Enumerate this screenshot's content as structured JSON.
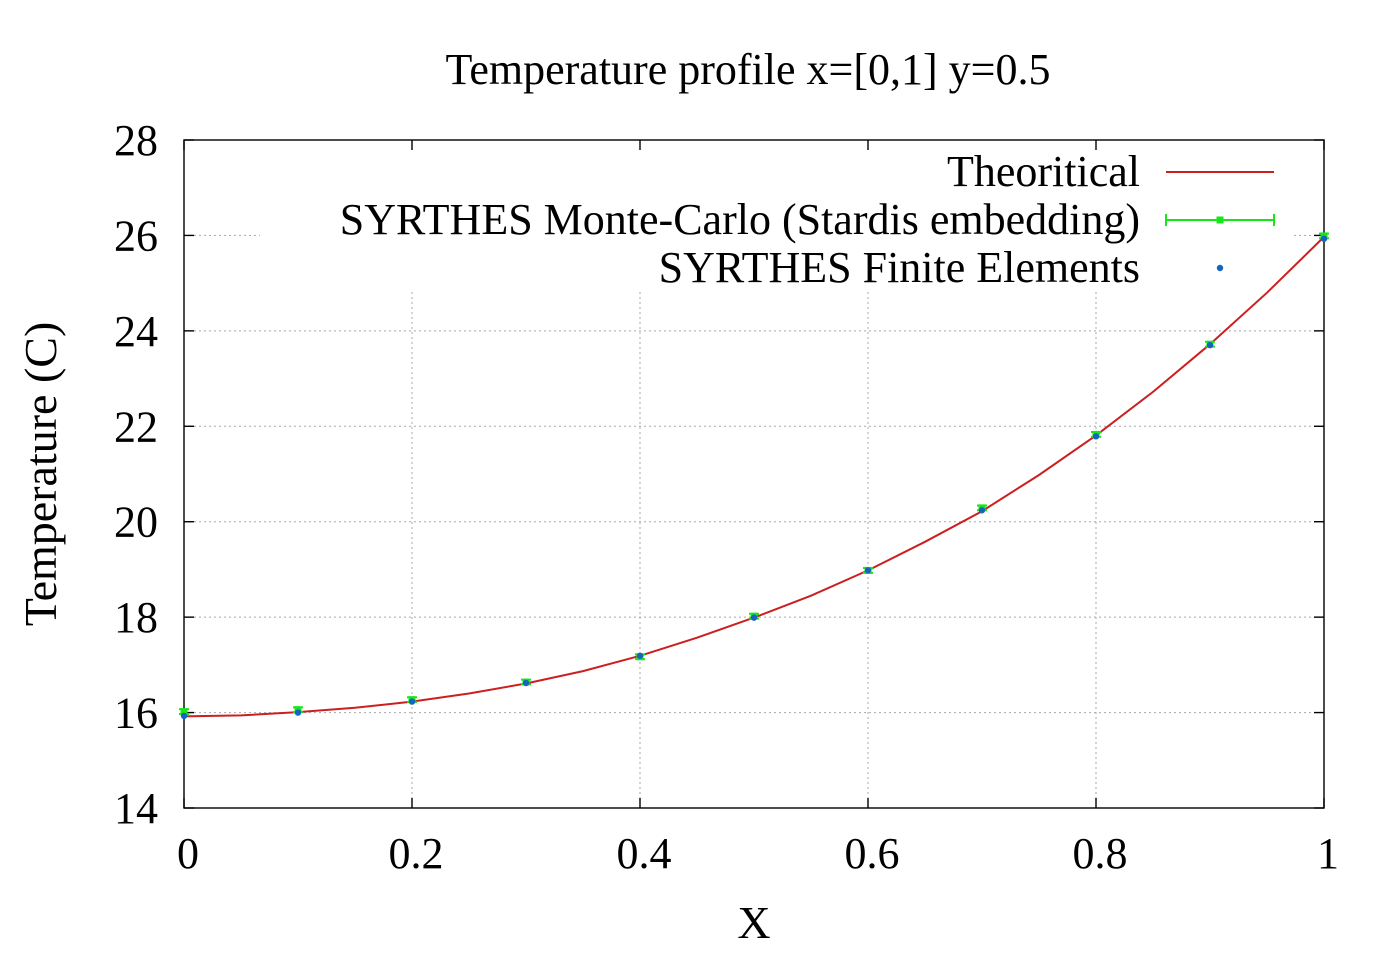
{
  "chart_data": {
    "type": "line",
    "title": "Temperature profile x=[0,1] y=0.5",
    "xlabel": "X",
    "ylabel": "Temperature (C)",
    "xlim": [
      0,
      1
    ],
    "ylim": [
      14,
      28
    ],
    "x_ticks": [
      "0",
      "0.2",
      "0.4",
      "0.6",
      "0.8",
      "1"
    ],
    "x_tick_values": [
      0,
      0.2,
      0.4,
      0.6,
      0.8,
      1
    ],
    "y_ticks": [
      "14",
      "16",
      "18",
      "20",
      "22",
      "24",
      "26",
      "28"
    ],
    "y_tick_values": [
      14,
      16,
      18,
      20,
      22,
      24,
      26,
      28
    ],
    "grid": true,
    "legend_position": "top-right",
    "series": [
      {
        "name": "Theoritical",
        "kind": "line",
        "color": "#cc1f1f",
        "x": [
          0,
          0.05,
          0.1,
          0.15,
          0.2,
          0.25,
          0.3,
          0.35,
          0.4,
          0.45,
          0.5,
          0.55,
          0.6,
          0.65,
          0.7,
          0.75,
          0.8,
          0.85,
          0.9,
          0.95,
          1
        ],
        "y": [
          15.92,
          15.94,
          16.01,
          16.1,
          16.23,
          16.4,
          16.61,
          16.87,
          17.19,
          17.57,
          17.99,
          18.45,
          18.98,
          19.58,
          20.22,
          20.98,
          21.81,
          22.72,
          23.72,
          24.8,
          25.97
        ]
      },
      {
        "name": "SYRTHES Monte-Carlo (Stardis embedding)",
        "kind": "errorbar",
        "color": "#19e619",
        "x": [
          0,
          0.1,
          0.2,
          0.3,
          0.4,
          0.5,
          0.6,
          0.7,
          0.8,
          0.9,
          1
        ],
        "y": [
          16.02,
          16.06,
          16.27,
          16.64,
          17.17,
          18.02,
          18.98,
          20.29,
          21.83,
          23.72,
          25.99
        ],
        "error": [
          0.05,
          0.05,
          0.05,
          0.05,
          0.05,
          0.05,
          0.05,
          0.05,
          0.05,
          0.05,
          0.05
        ]
      },
      {
        "name": "SYRTHES Finite Elements",
        "kind": "points",
        "color": "#1565c0",
        "x": [
          0,
          0.1,
          0.2,
          0.3,
          0.4,
          0.5,
          0.6,
          0.7,
          0.8,
          0.9,
          1
        ],
        "y": [
          15.93,
          16.0,
          16.23,
          16.62,
          17.19,
          17.99,
          18.98,
          20.24,
          21.79,
          23.7,
          25.93
        ]
      }
    ]
  }
}
